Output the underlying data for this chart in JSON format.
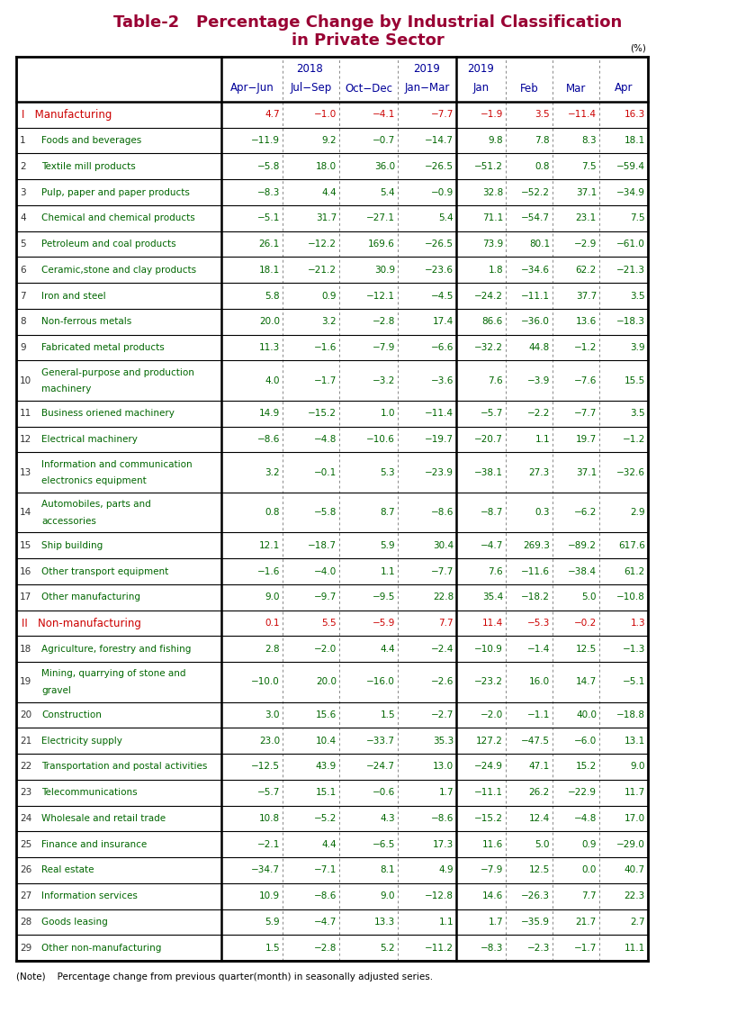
{
  "title_line1": "Table-2   Percentage Change by Industrial Classification",
  "title_line2": "in Private Sector",
  "title_color": "#990033",
  "note": "(Note)    Percentage change from previous quarter(month) in seasonally adjusted series.",
  "unit_label": "(%)",
  "col_header_line1": [
    "2018",
    "",
    "",
    "2019",
    "2019",
    "",
    "",
    ""
  ],
  "col_header_line2": [
    "Apr−Jun",
    "Jul−Sep",
    "Oct−Dec",
    "Jan−Mar",
    "Jan",
    "Feb",
    "Mar",
    "Apr"
  ],
  "rows": [
    {
      "label": "I   Manufacturing",
      "num": "",
      "values": [
        "4.7",
        "−1.0",
        "−4.1",
        "−7.7",
        "−1.9",
        "3.5",
        "−11.4",
        "16.3"
      ],
      "label_color": "#cc0000",
      "is_header": true
    },
    {
      "label": "Foods and beverages",
      "num": "1",
      "values": [
        "−11.9",
        "9.2",
        "−0.7",
        "−14.7",
        "9.8",
        "7.8",
        "8.3",
        "18.1"
      ],
      "label_color": "#006600",
      "is_header": false
    },
    {
      "label": "Textile mill products",
      "num": "2",
      "values": [
        "−5.8",
        "18.0",
        "36.0",
        "−26.5",
        "−51.2",
        "0.8",
        "7.5",
        "−59.4"
      ],
      "label_color": "#006600",
      "is_header": false
    },
    {
      "label": "Pulp, paper and paper products",
      "num": "3",
      "values": [
        "−8.3",
        "4.4",
        "5.4",
        "−0.9",
        "32.8",
        "−52.2",
        "37.1",
        "−34.9"
      ],
      "label_color": "#006600",
      "is_header": false
    },
    {
      "label": "Chemical and chemical products",
      "num": "4",
      "values": [
        "−5.1",
        "31.7",
        "−27.1",
        "5.4",
        "71.1",
        "−54.7",
        "23.1",
        "7.5"
      ],
      "label_color": "#006600",
      "is_header": false
    },
    {
      "label": "Petroleum and coal products",
      "num": "5",
      "values": [
        "26.1",
        "−12.2",
        "169.6",
        "−26.5",
        "73.9",
        "80.1",
        "−2.9",
        "−61.0"
      ],
      "label_color": "#006600",
      "is_header": false
    },
    {
      "label": "Ceramic,stone and clay products",
      "num": "6",
      "values": [
        "18.1",
        "−21.2",
        "30.9",
        "−23.6",
        "1.8",
        "−34.6",
        "62.2",
        "−21.3"
      ],
      "label_color": "#006600",
      "is_header": false
    },
    {
      "label": "Iron and steel",
      "num": "7",
      "values": [
        "5.8",
        "0.9",
        "−12.1",
        "−4.5",
        "−24.2",
        "−11.1",
        "37.7",
        "3.5"
      ],
      "label_color": "#006600",
      "is_header": false
    },
    {
      "label": "Non-ferrous metals",
      "num": "8",
      "values": [
        "20.0",
        "3.2",
        "−2.8",
        "17.4",
        "86.6",
        "−36.0",
        "13.6",
        "−18.3"
      ],
      "label_color": "#006600",
      "is_header": false
    },
    {
      "label": "Fabricated metal products",
      "num": "9",
      "values": [
        "11.3",
        "−1.6",
        "−7.9",
        "−6.6",
        "−32.2",
        "44.8",
        "−1.2",
        "3.9"
      ],
      "label_color": "#006600",
      "is_header": false
    },
    {
      "label": "General-purpose and production\nmachinery",
      "num": "10",
      "values": [
        "4.0",
        "−1.7",
        "−3.2",
        "−3.6",
        "7.6",
        "−3.9",
        "−7.6",
        "15.5"
      ],
      "label_color": "#006600",
      "is_header": false
    },
    {
      "label": "Business oriened machinery",
      "num": "11",
      "values": [
        "14.9",
        "−15.2",
        "1.0",
        "−11.4",
        "−5.7",
        "−2.2",
        "−7.7",
        "3.5"
      ],
      "label_color": "#006600",
      "is_header": false
    },
    {
      "label": "Electrical machinery",
      "num": "12",
      "values": [
        "−8.6",
        "−4.8",
        "−10.6",
        "−19.7",
        "−20.7",
        "1.1",
        "19.7",
        "−1.2"
      ],
      "label_color": "#006600",
      "is_header": false
    },
    {
      "label": "Information and communication\nelectronics equipment",
      "num": "13",
      "values": [
        "3.2",
        "−0.1",
        "5.3",
        "−23.9",
        "−38.1",
        "27.3",
        "37.1",
        "−32.6"
      ],
      "label_color": "#006600",
      "is_header": false
    },
    {
      "label": "Automobiles, parts and\naccessories",
      "num": "14",
      "values": [
        "0.8",
        "−5.8",
        "8.7",
        "−8.6",
        "−8.7",
        "0.3",
        "−6.2",
        "2.9"
      ],
      "label_color": "#006600",
      "is_header": false
    },
    {
      "label": "Ship building",
      "num": "15",
      "values": [
        "12.1",
        "−18.7",
        "5.9",
        "30.4",
        "−4.7",
        "269.3",
        "−89.2",
        "617.6"
      ],
      "label_color": "#006600",
      "is_header": false
    },
    {
      "label": "Other transport equipment",
      "num": "16",
      "values": [
        "−1.6",
        "−4.0",
        "1.1",
        "−7.7",
        "7.6",
        "−11.6",
        "−38.4",
        "61.2"
      ],
      "label_color": "#006600",
      "is_header": false
    },
    {
      "label": "Other manufacturing",
      "num": "17",
      "values": [
        "9.0",
        "−9.7",
        "−9.5",
        "22.8",
        "35.4",
        "−18.2",
        "5.0",
        "−10.8"
      ],
      "label_color": "#006600",
      "is_header": false
    },
    {
      "label": "II   Non-manufacturing",
      "num": "",
      "values": [
        "0.1",
        "5.5",
        "−5.9",
        "7.7",
        "11.4",
        "−5.3",
        "−0.2",
        "1.3"
      ],
      "label_color": "#cc0000",
      "is_header": true
    },
    {
      "label": "Agriculture, forestry and fishing",
      "num": "18",
      "values": [
        "2.8",
        "−2.0",
        "4.4",
        "−2.4",
        "−10.9",
        "−1.4",
        "12.5",
        "−1.3"
      ],
      "label_color": "#006600",
      "is_header": false
    },
    {
      "label": "Mining, quarrying of stone and\ngravel",
      "num": "19",
      "values": [
        "−10.0",
        "20.0",
        "−16.0",
        "−2.6",
        "−23.2",
        "16.0",
        "14.7",
        "−5.1"
      ],
      "label_color": "#006600",
      "is_header": false
    },
    {
      "label": "Construction",
      "num": "20",
      "values": [
        "3.0",
        "15.6",
        "1.5",
        "−2.7",
        "−2.0",
        "−1.1",
        "40.0",
        "−18.8"
      ],
      "label_color": "#006600",
      "is_header": false
    },
    {
      "label": "Electricity supply",
      "num": "21",
      "values": [
        "23.0",
        "10.4",
        "−33.7",
        "35.3",
        "127.2",
        "−47.5",
        "−6.0",
        "13.1"
      ],
      "label_color": "#006600",
      "is_header": false
    },
    {
      "label": "Transportation and postal activities",
      "num": "22",
      "values": [
        "−12.5",
        "43.9",
        "−24.7",
        "13.0",
        "−24.9",
        "47.1",
        "15.2",
        "9.0"
      ],
      "label_color": "#006600",
      "is_header": false
    },
    {
      "label": "Telecommunications",
      "num": "23",
      "values": [
        "−5.7",
        "15.1",
        "−0.6",
        "1.7",
        "−11.1",
        "26.2",
        "−22.9",
        "11.7"
      ],
      "label_color": "#006600",
      "is_header": false
    },
    {
      "label": "Wholesale and retail trade",
      "num": "24",
      "values": [
        "10.8",
        "−5.2",
        "4.3",
        "−8.6",
        "−15.2",
        "12.4",
        "−4.8",
        "17.0"
      ],
      "label_color": "#006600",
      "is_header": false
    },
    {
      "label": "Finance and insurance",
      "num": "25",
      "values": [
        "−2.1",
        "4.4",
        "−6.5",
        "17.3",
        "11.6",
        "5.0",
        "0.9",
        "−29.0"
      ],
      "label_color": "#006600",
      "is_header": false
    },
    {
      "label": "Real estate",
      "num": "26",
      "values": [
        "−34.7",
        "−7.1",
        "8.1",
        "4.9",
        "−7.9",
        "12.5",
        "0.0",
        "40.7"
      ],
      "label_color": "#006600",
      "is_header": false
    },
    {
      "label": "Information services",
      "num": "27",
      "values": [
        "10.9",
        "−8.6",
        "9.0",
        "−12.8",
        "14.6",
        "−26.3",
        "7.7",
        "22.3"
      ],
      "label_color": "#006600",
      "is_header": false
    },
    {
      "label": "Goods leasing",
      "num": "28",
      "values": [
        "5.9",
        "−4.7",
        "13.3",
        "1.1",
        "1.7",
        "−35.9",
        "21.7",
        "2.7"
      ],
      "label_color": "#006600",
      "is_header": false
    },
    {
      "label": "Other non-manufacturing",
      "num": "29",
      "values": [
        "1.5",
        "−2.8",
        "5.2",
        "−11.2",
        "−8.3",
        "−2.3",
        "−1.7",
        "11.1"
      ],
      "label_color": "#006600",
      "is_header": false
    }
  ],
  "header_color": "#000099",
  "value_color": "#006600",
  "bg_color": "#ffffff",
  "border_color": "#000000"
}
